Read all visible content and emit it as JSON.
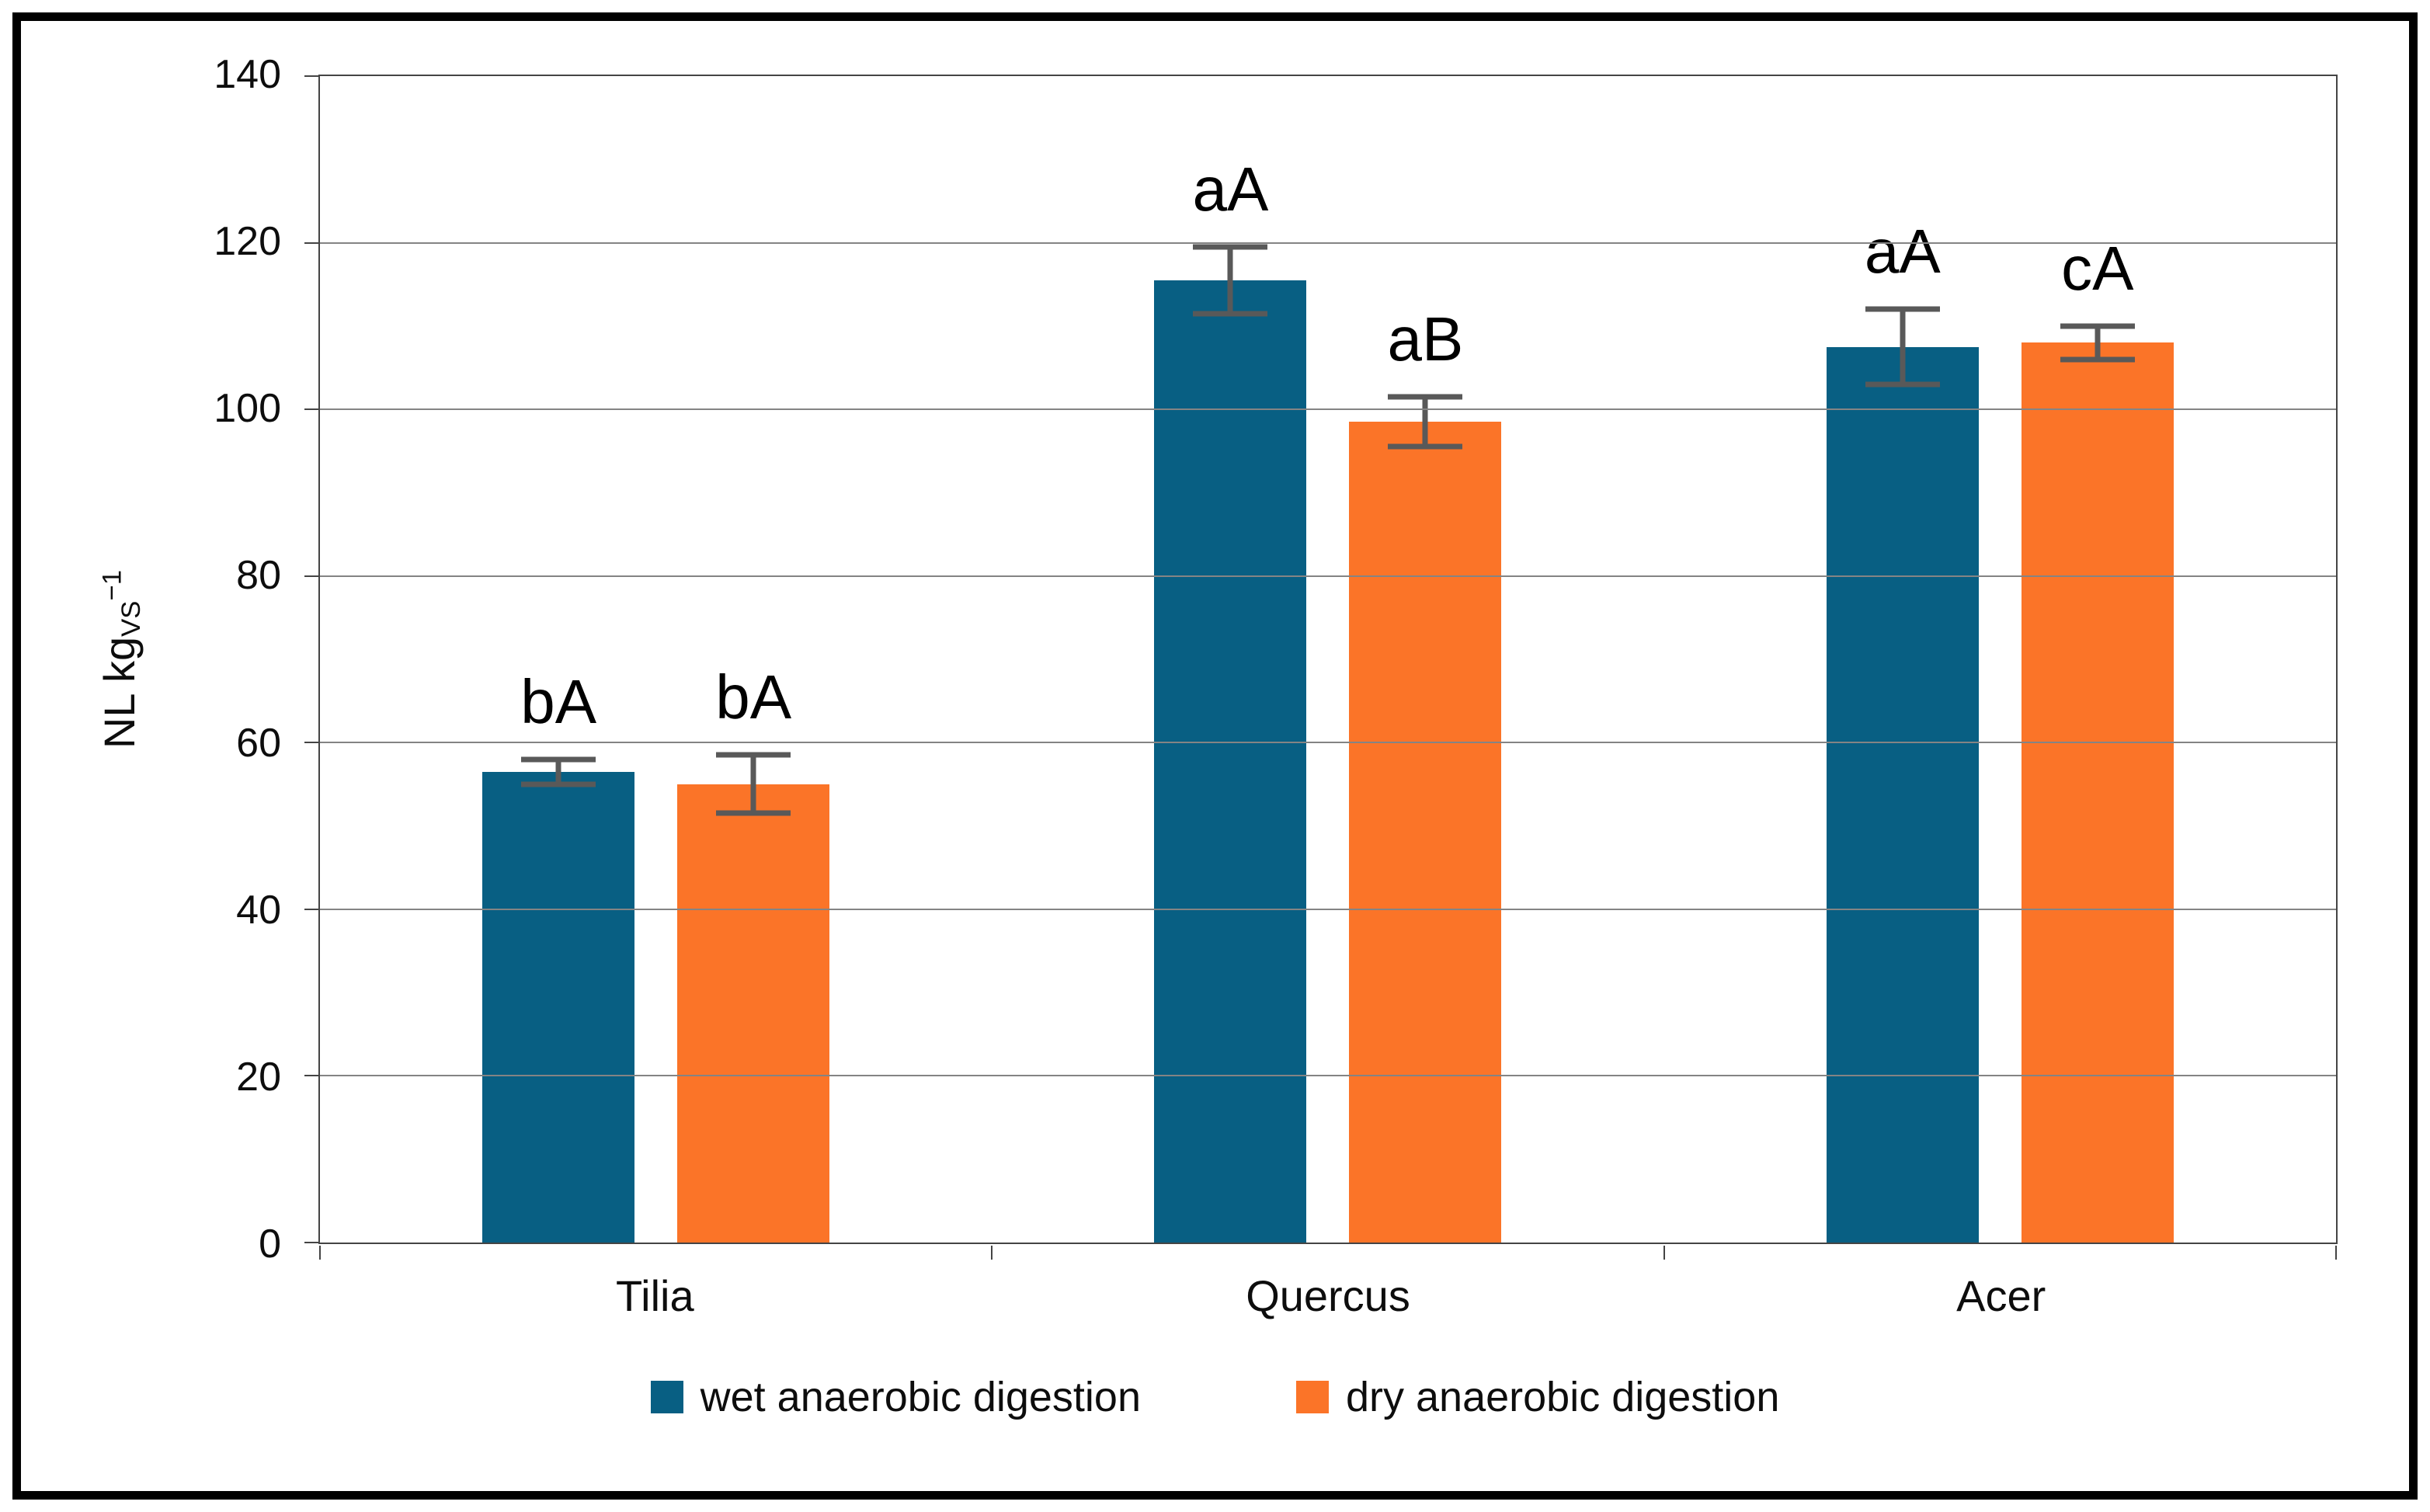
{
  "figure": {
    "background_color": "#ffffff",
    "border_color": "#000000",
    "gridline_color": "#848484",
    "axis_color": "#444444",
    "error_bar_color": "#595959"
  },
  "axis_label": {
    "main": "NL kg",
    "sub": "VS",
    "sup": "−1"
  },
  "chart_data": {
    "type": "bar",
    "title": "",
    "xlabel": "",
    "ylabel": "NL kg_VS^-1",
    "categories": [
      "Tilia",
      "Quercus",
      "Acer"
    ],
    "series": [
      {
        "name": "wet anaerobic digestion",
        "color": "#085f83",
        "values": [
          56.5,
          115.5,
          107.5
        ],
        "errors": [
          1.5,
          4,
          4.5
        ],
        "sig_labels": [
          "bA",
          "aA",
          "aA"
        ]
      },
      {
        "name": "dry anaerobic digestion",
        "color": "#fb7428",
        "values": [
          55,
          98.5,
          108
        ],
        "errors": [
          3.5,
          3,
          2
        ],
        "sig_labels": [
          "bA",
          "aB",
          "cA"
        ]
      }
    ],
    "ylim": [
      0,
      140
    ],
    "ytick_step": 20,
    "yticks": [
      0,
      20,
      40,
      60,
      80,
      100,
      120,
      140
    ],
    "grid": "horizontal",
    "legend_position": "bottom"
  }
}
